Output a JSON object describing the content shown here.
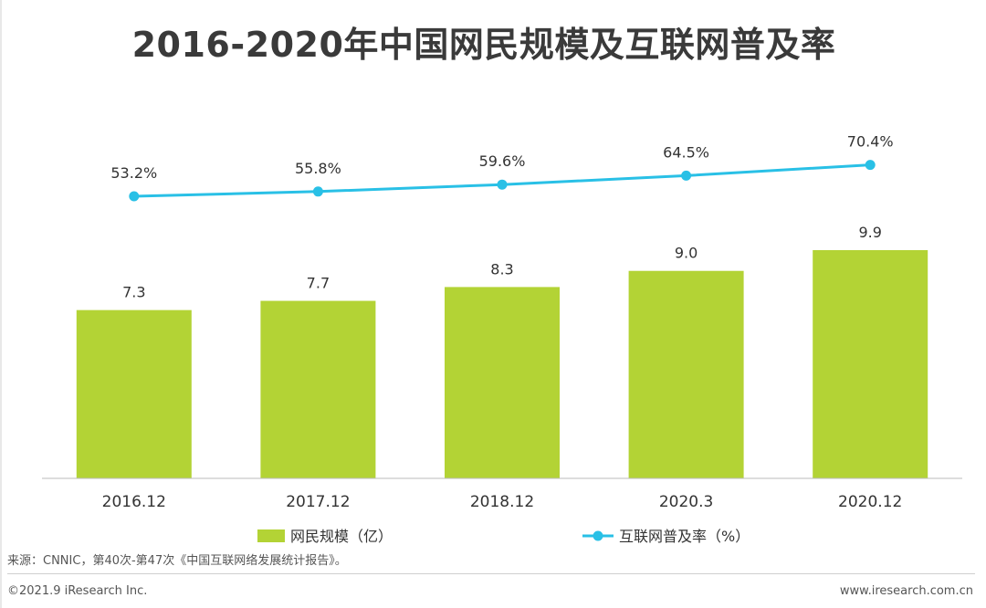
{
  "chart_data": {
    "type": "bar+line",
    "title": "2016-2020年中国网民规模及互联网普及率",
    "categories": [
      "2016.12",
      "2017.12",
      "2018.12",
      "2020.3",
      "2020.12"
    ],
    "series": [
      {
        "name": "网民规模（亿）",
        "type": "bar",
        "values": [
          7.3,
          7.7,
          8.3,
          9.0,
          9.9
        ],
        "labels": [
          "7.3",
          "7.7",
          "8.3",
          "9.0",
          "9.9"
        ],
        "color": "#b3d335"
      },
      {
        "name": "互联网普及率（%）",
        "type": "line",
        "values": [
          53.2,
          55.8,
          59.6,
          64.5,
          70.4
        ],
        "labels": [
          "53.2%",
          "55.8%",
          "59.6%",
          "64.5%",
          "70.4%"
        ],
        "color": "#29c0e6"
      }
    ],
    "legend_position": "bottom",
    "grid": false
  },
  "footer": {
    "source": "来源：CNNIC，第40次-第47次《中国互联网络发展统计报告》。",
    "copyright": "©2021.9 iResearch Inc.",
    "website": "www.iresearch.com.cn"
  }
}
